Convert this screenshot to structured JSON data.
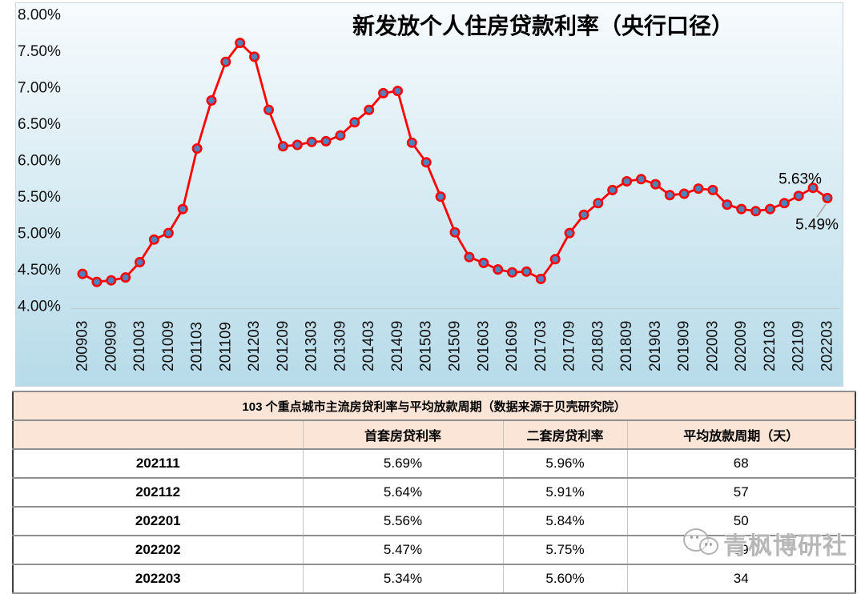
{
  "chart_data": {
    "type": "line",
    "title": "新发放个人住房贷款利率（央行口径）",
    "xlabel": "",
    "ylabel": "",
    "ylim": [
      4.0,
      8.0
    ],
    "y_tick_step": 0.5,
    "y_tick_labels": [
      "8.00%",
      "7.50%",
      "7.00%",
      "6.50%",
      "6.00%",
      "5.50%",
      "5.00%",
      "4.50%",
      "4.00%"
    ],
    "grid": "baseline-only",
    "legend": "none",
    "line_color": "#FF0000",
    "marker_fill": "#4F81BD",
    "marker_stroke": "#FF0000",
    "x": [
      "200903",
      "200906",
      "200909",
      "200912",
      "201003",
      "201006",
      "201009",
      "201012",
      "201103",
      "201106",
      "201109",
      "201112",
      "201203",
      "201206",
      "201209",
      "201212",
      "201303",
      "201306",
      "201309",
      "201312",
      "201403",
      "201406",
      "201409",
      "201412",
      "201503",
      "201506",
      "201509",
      "201512",
      "201603",
      "201606",
      "201609",
      "201612",
      "201703",
      "201706",
      "201709",
      "201712",
      "201803",
      "201806",
      "201809",
      "201812",
      "201903",
      "201906",
      "201909",
      "201912",
      "202003",
      "202006",
      "202009",
      "202012",
      "202103",
      "202106",
      "202109",
      "202112",
      "202203"
    ],
    "values": [
      4.45,
      4.34,
      4.36,
      4.4,
      4.61,
      4.92,
      5.01,
      5.34,
      6.17,
      6.83,
      7.36,
      7.62,
      7.43,
      6.7,
      6.2,
      6.22,
      6.26,
      6.27,
      6.35,
      6.53,
      6.7,
      6.93,
      6.96,
      6.25,
      5.98,
      5.51,
      5.02,
      4.68,
      4.6,
      4.51,
      4.47,
      4.48,
      4.38,
      4.65,
      5.01,
      5.26,
      5.42,
      5.6,
      5.72,
      5.75,
      5.68,
      5.53,
      5.55,
      5.62,
      5.6,
      5.4,
      5.34,
      5.31,
      5.34,
      5.42,
      5.52,
      5.63,
      5.49
    ],
    "x_tick_labels": [
      "200903",
      "200909",
      "201003",
      "201009",
      "201103",
      "201109",
      "201203",
      "201209",
      "201303",
      "201309",
      "201403",
      "201409",
      "201503",
      "201509",
      "201603",
      "201609",
      "201703",
      "201709",
      "201803",
      "201809",
      "201903",
      "201909",
      "202003",
      "202009",
      "202103",
      "202109",
      "202203"
    ],
    "annotations": [
      {
        "x": "202112",
        "text": "5.63%"
      },
      {
        "x": "202203",
        "text": "5.49%"
      }
    ]
  },
  "table": {
    "title": "103 个重点城市主流房贷利率与平均放款周期（数据来源于贝壳研究院）",
    "columns": [
      "",
      "首套房贷利率",
      "二套房贷利率",
      "平均放款周期（天）"
    ],
    "rows": [
      [
        "202111",
        "5.69%",
        "5.96%",
        "68"
      ],
      [
        "202112",
        "5.64%",
        "5.91%",
        "57"
      ],
      [
        "202201",
        "5.56%",
        "5.84%",
        "50"
      ],
      [
        "202202",
        "5.47%",
        "5.75%",
        "39"
      ],
      [
        "202203",
        "5.34%",
        "5.60%",
        "34"
      ]
    ]
  },
  "watermark": {
    "icon": "wechat-icon",
    "text": "青枫博研社"
  },
  "colors": {
    "plot_bg_top": "#f7fbfd",
    "plot_bg_bottom": "#b7dbe9",
    "plot_border": "#cdd6da",
    "baseline": "#c4ccd0",
    "leader_line": "#a9a9a9",
    "table_header_bg": "#FBE5D6",
    "table_outer_border": "#3f3f3f",
    "table_row_border": "#8f8f8f"
  }
}
